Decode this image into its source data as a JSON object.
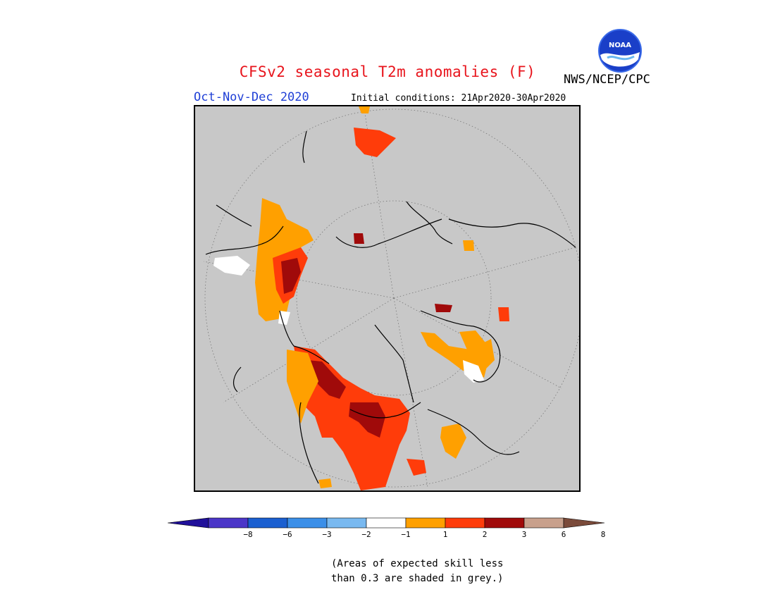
{
  "header": {
    "title": "CFSv2 seasonal T2m anomalies (F)",
    "org": "NWS/NCEP/CPC",
    "logo_text": "NOAA",
    "season": "Oct-Nov-Dec 2020",
    "initial_conditions": "Initial conditions: 21Apr2020-30Apr2020"
  },
  "legend": {
    "bins": [
      {
        "color": "#4b36c8"
      },
      {
        "color": "#1a5fd0"
      },
      {
        "color": "#3b8fe8"
      },
      {
        "color": "#79b9f0"
      },
      {
        "color": "#ffffff"
      },
      {
        "color": "#ffa000"
      },
      {
        "color": "#ff3c0a"
      },
      {
        "color": "#a00a0a"
      },
      {
        "color": "#c8a08c"
      }
    ],
    "low_end_color": "#20109a",
    "high_end_color": "#7a4a3a",
    "labels": [
      "−8",
      "−6",
      "−3",
      "−2",
      "−1",
      "1",
      "2",
      "3",
      "6",
      "8"
    ]
  },
  "note": {
    "line1": "(Areas of expected skill less",
    "line2": "than 0.3 are shaded in grey.)"
  },
  "colors": {
    "grey": "#c8c8c8",
    "light_warm": "#ffa000",
    "warm": "#ff3c0a",
    "hot": "#a00a0a",
    "cool_light": "#ffffff"
  }
}
